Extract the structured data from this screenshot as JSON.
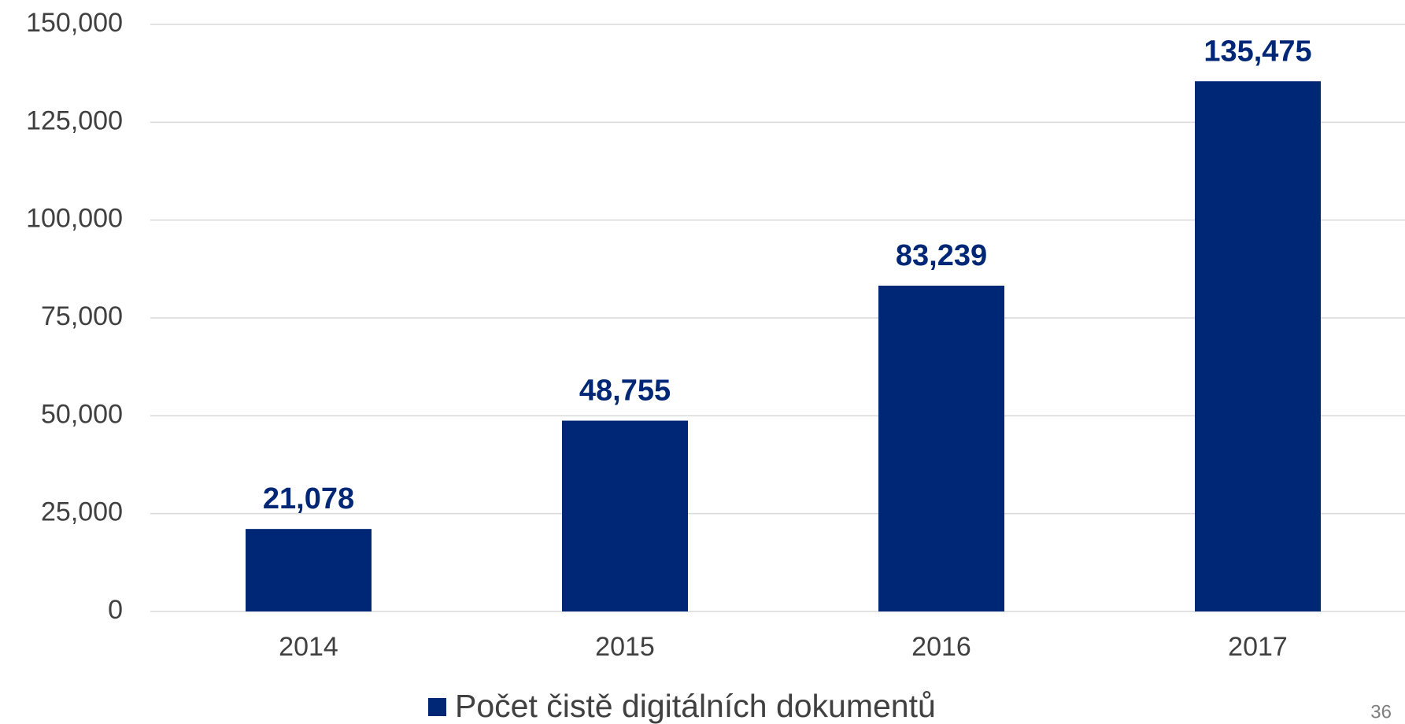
{
  "chart_data": {
    "type": "bar",
    "categories": [
      "2014",
      "2015",
      "2016",
      "2017"
    ],
    "series": [
      {
        "name": "Počet čistě digitálních dokumentů",
        "color": "#002776",
        "values": [
          21078,
          48755,
          83239,
          135475
        ],
        "value_labels": [
          "21,078",
          "48,755",
          "83,239",
          "135,475"
        ]
      }
    ],
    "ylim": [
      0,
      150000
    ],
    "yticks": [
      0,
      {
        "value": 25000,
        "label": "25,000"
      },
      {
        "value": 50000,
        "label": "50,000"
      },
      {
        "value": 75000,
        "label": "75,000"
      },
      {
        "value": 100000,
        "label": "100,000"
      },
      {
        "value": 125000,
        "label": "125,000"
      },
      {
        "value": 150000,
        "label": "150,000"
      }
    ],
    "grid": true,
    "legend": "bottom"
  },
  "page_number": "36"
}
